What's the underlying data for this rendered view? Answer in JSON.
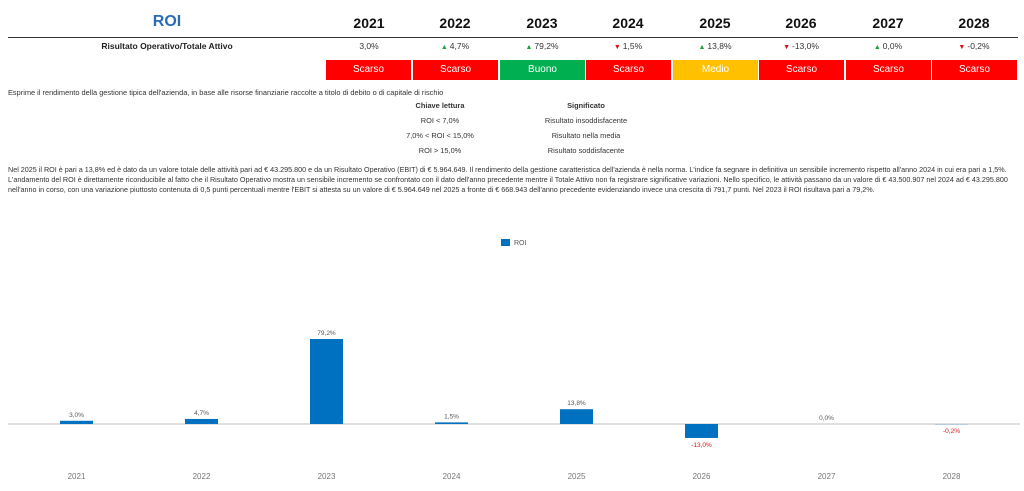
{
  "header": {
    "title": "ROI",
    "years": [
      "2021",
      "2022",
      "2023",
      "2024",
      "2025",
      "2026",
      "2027",
      "2028"
    ]
  },
  "indicator": {
    "label": "Risultato Operativo/Totale Attivo",
    "values": [
      {
        "text": "3,0%",
        "trend": "none"
      },
      {
        "text": "4,7%",
        "trend": "up"
      },
      {
        "text": "79,2%",
        "trend": "up"
      },
      {
        "text": "1,5%",
        "trend": "down"
      },
      {
        "text": "13,8%",
        "trend": "up"
      },
      {
        "text": "-13,0%",
        "trend": "down"
      },
      {
        "text": "0,0%",
        "trend": "up"
      },
      {
        "text": "-0,2%",
        "trend": "down"
      }
    ],
    "ratings": [
      {
        "label": "Scarso",
        "color": "#ff0000"
      },
      {
        "label": "Scarso",
        "color": "#ff0000"
      },
      {
        "label": "Buono",
        "color": "#00b050"
      },
      {
        "label": "Scarso",
        "color": "#ff0000"
      },
      {
        "label": "Medio",
        "color": "#ffc000"
      },
      {
        "label": "Scarso",
        "color": "#ff0000"
      },
      {
        "label": "Scarso",
        "color": "#ff0000"
      },
      {
        "label": "Scarso",
        "color": "#ff0000"
      }
    ]
  },
  "description": "Esprime il rendimento della gestione tipica dell'azienda, in base alle risorse finanziarie raccolte a titolo di debito o di capitale di rischio",
  "reading_key": {
    "header_key": "Chiave lettura",
    "header_meaning": "Significato",
    "rows": [
      {
        "key": "ROI < 7,0%",
        "meaning": "Risultato insoddisfacente"
      },
      {
        "key": "7,0% < ROI < 15,0%",
        "meaning": "Risultato nella media"
      },
      {
        "key": "ROI > 15,0%",
        "meaning": "Risultato soddisfacente"
      }
    ]
  },
  "paragraph": "Nel 2025 il ROI è pari a 13,8% ed è dato da un valore totale delle attività pari ad € 43.295.800 e da un Risultato Operativo (EBIT) di € 5.964.649. Il rendimento della gestione caratteristica dell'azienda è nella norma. L'indice fa segnare in definitiva un sensibile incremento rispetto all'anno 2024 in cui era pari a 1,5%. L'andamento del ROI è direttamente riconducibile al fatto che il Risultato Operativo mostra un sensibile incremento se confrontato con il dato dell'anno precedente mentre il Totale Attivo non fa registrare significative variazioni. Nello specifico, le attività passano da un valore di € 43.500.907 nel 2024 ad € 43.295.800 nell'anno in corso, con una variazione piuttosto contenuta di 0,5 punti percentuali mentre l'EBIT si attesta su un valore di € 5.964.649 nel 2025 a fronte di € 668.943 dell'anno precedente evidenziando invece una crescita di 791,7 punti. Nel 2023 il ROI risultava pari a 79,2%.",
  "colors": {
    "bar": "#0070c0",
    "negative_label": "#e01010"
  },
  "chart_data": {
    "type": "bar",
    "legend": "ROI",
    "legend_position": "top-center",
    "categories": [
      "2021",
      "2022",
      "2023",
      "2024",
      "2025",
      "2026",
      "2027",
      "2028"
    ],
    "values": [
      3.0,
      4.7,
      79.2,
      1.5,
      13.8,
      -13.0,
      0.0,
      -0.2
    ],
    "labels": [
      "3,0%",
      "4,7%",
      "79,2%",
      "1,5%",
      "13,8%",
      "-13,0%",
      "0,0%",
      "-0,2%"
    ],
    "ylim": [
      -30,
      100
    ],
    "grid": false
  }
}
